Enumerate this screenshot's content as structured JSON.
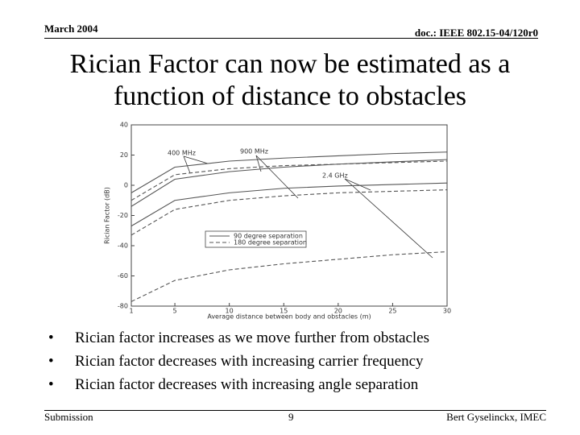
{
  "header": {
    "date": "March 2004",
    "doc": "doc.: IEEE 802.15-04/120r0"
  },
  "title": [
    "Rician Factor can now be estimated as a",
    "function of distance to obstacles"
  ],
  "chart_data": {
    "type": "line",
    "x_label": "Average distance between body and obstacles (m)",
    "y_label": "Rician Factor (dB)",
    "x": [
      1,
      5,
      10,
      15,
      20,
      25,
      30
    ],
    "series": [
      {
        "color": "#555555",
        "dash": false,
        "values": [
          -5,
          12,
          16,
          18,
          19.5,
          21,
          22
        ]
      },
      {
        "color": "#555555",
        "dash": true,
        "values": [
          -10,
          7,
          11,
          13,
          14,
          15,
          16
        ]
      },
      {
        "color": "#555555",
        "dash": false,
        "values": [
          -14,
          4,
          9,
          12,
          14,
          15.5,
          17
        ]
      },
      {
        "color": "#555555",
        "dash": false,
        "values": [
          -27,
          -10,
          -5,
          -2,
          -0.5,
          0.5,
          1.5
        ]
      },
      {
        "color": "#555555",
        "dash": true,
        "values": [
          -33,
          -16,
          -10,
          -7,
          -5,
          -4,
          -3
        ]
      },
      {
        "color": "#555555",
        "dash": true,
        "values": [
          -77,
          -63,
          -56,
          -52,
          -49,
          -46,
          -44
        ]
      }
    ],
    "legend": [
      {
        "label": "90 degree separation",
        "dash": false
      },
      {
        "label": "180 degree separation",
        "dash": true
      }
    ],
    "annotations": [
      "400 MHz",
      "900 MHz",
      "2.4 GHz"
    ],
    "xlim": [
      1,
      30
    ],
    "xticks": [
      1,
      5,
      10,
      15,
      20,
      25,
      30
    ],
    "ylim": [
      -80,
      40
    ],
    "yticks": [
      -80,
      -60,
      -40,
      -20,
      0,
      20,
      40
    ]
  },
  "bullets": [
    "Rician factor increases as we move further from obstacles",
    "Rician factor decreases with increasing carrier frequency",
    "Rician factor decreases with increasing angle separation"
  ],
  "footer": {
    "left": "Submission",
    "page": "9",
    "right": "Bert Gyselinckx, IMEC"
  }
}
